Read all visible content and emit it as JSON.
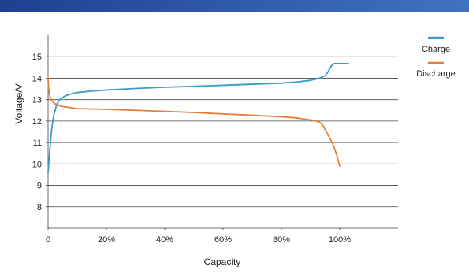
{
  "colors": {
    "banner": "#2d58a8",
    "grid": "#444444",
    "charge": "#3a9bc9",
    "discharge": "#e27f3a"
  },
  "chart_data": {
    "type": "line",
    "xlabel": "Capacity",
    "ylabel": "Voltage/V",
    "xlim": [
      0,
      120
    ],
    "ylim": [
      7,
      16
    ],
    "x_ticks": [
      0,
      20,
      40,
      60,
      80,
      100
    ],
    "x_tick_labels": [
      "0",
      "20%",
      "40%",
      "60%",
      "80%",
      "100%"
    ],
    "y_ticks": [
      8,
      9,
      10,
      11,
      12,
      13,
      14,
      15
    ],
    "y_tick_labels": [
      "8",
      "9",
      "10",
      "11",
      "12",
      "13",
      "14",
      "15"
    ],
    "grid": "horizontal",
    "legend_position": "top-right",
    "series": [
      {
        "name": "Charge",
        "color": "#3a9bc9",
        "x": [
          0,
          0.5,
          1,
          1.5,
          2,
          3,
          4,
          5,
          6,
          8,
          10,
          15,
          20,
          30,
          40,
          50,
          60,
          70,
          80,
          85,
          90,
          93,
          95,
          96,
          97,
          98,
          100,
          103
        ],
        "y": [
          9.6,
          10.5,
          11.3,
          11.9,
          12.3,
          12.8,
          13.0,
          13.1,
          13.18,
          13.27,
          13.33,
          13.4,
          13.45,
          13.52,
          13.58,
          13.62,
          13.67,
          13.72,
          13.77,
          13.82,
          13.9,
          14.0,
          14.12,
          14.3,
          14.55,
          14.68,
          14.68,
          14.68
        ]
      },
      {
        "name": "Discharge",
        "color": "#e27f3a",
        "x": [
          0,
          0.2,
          0.5,
          1,
          2,
          3,
          5,
          10,
          20,
          30,
          40,
          50,
          60,
          70,
          80,
          85,
          90,
          92,
          93,
          94,
          95,
          96,
          97,
          98,
          99,
          100
        ],
        "y": [
          14.0,
          13.5,
          13.2,
          13.0,
          12.85,
          12.75,
          12.68,
          12.58,
          12.55,
          12.5,
          12.45,
          12.4,
          12.33,
          12.27,
          12.2,
          12.15,
          12.05,
          12.0,
          11.95,
          11.85,
          11.6,
          11.35,
          11.1,
          10.8,
          10.4,
          9.9
        ]
      }
    ]
  }
}
